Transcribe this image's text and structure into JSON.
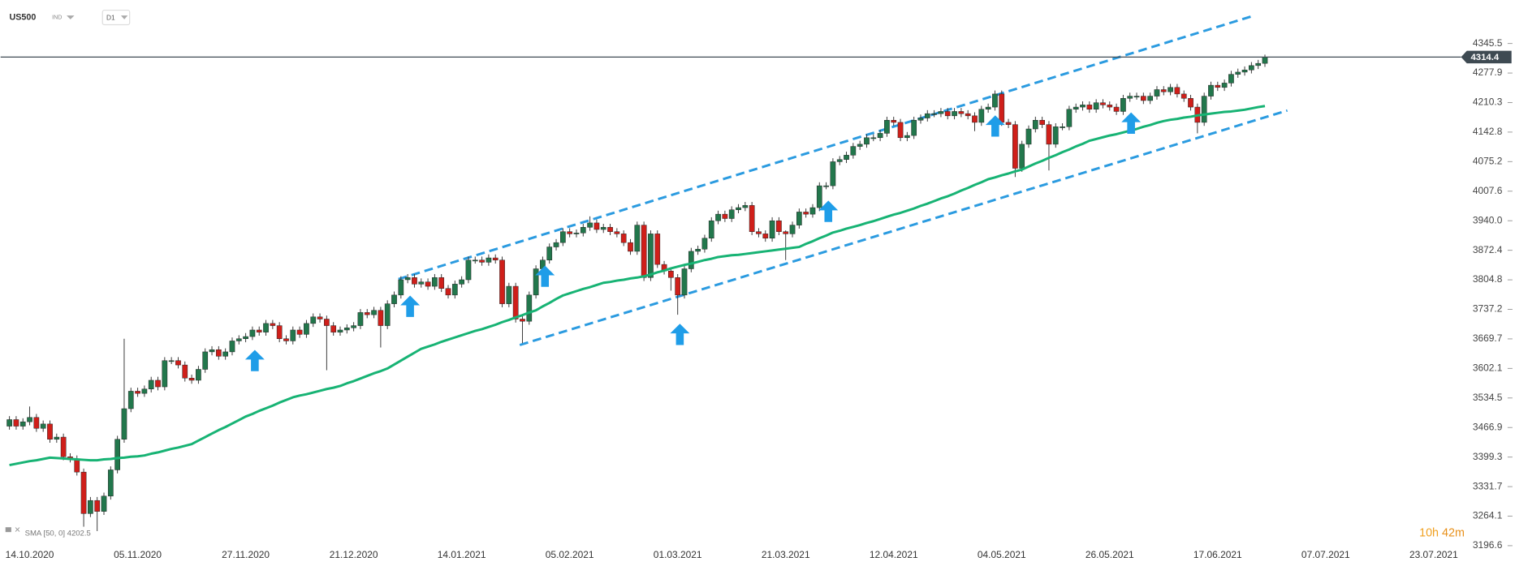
{
  "chart_data": {
    "type": "candlestick",
    "symbol": "US500",
    "market": "IND",
    "timeframe": "D1",
    "up_color": "#22774c",
    "down_color": "#cf1f1a",
    "categories": [
      null,
      null,
      null,
      "14.10.2020",
      null,
      null,
      null,
      null,
      null,
      null,
      null,
      null,
      null,
      null,
      null,
      null,
      null,
      null,
      null,
      "05.11.2020",
      null,
      null,
      null,
      null,
      null,
      null,
      null,
      null,
      null,
      null,
      null,
      null,
      null,
      null,
      null,
      "27.11.2020",
      null,
      null,
      null,
      null,
      null,
      null,
      null,
      null,
      null,
      null,
      null,
      null,
      null,
      null,
      null,
      "21.12.2020",
      null,
      null,
      null,
      null,
      null,
      null,
      null,
      null,
      null,
      null,
      null,
      null,
      null,
      null,
      null,
      "14.01.2021",
      null,
      null,
      null,
      null,
      null,
      null,
      null,
      null,
      null,
      null,
      null,
      null,
      null,
      null,
      null,
      "05.02.2021",
      null,
      null,
      null,
      null,
      null,
      null,
      null,
      null,
      null,
      null,
      null,
      null,
      null,
      null,
      null,
      "01.03.2021",
      null,
      null,
      null,
      null,
      null,
      null,
      null,
      null,
      null,
      null,
      null,
      null,
      null,
      null,
      null,
      "21.03.2021",
      null,
      null,
      null,
      null,
      null,
      null,
      null,
      null,
      null,
      null,
      null,
      null,
      null,
      null,
      null,
      "12.04.2021",
      null,
      null,
      null,
      null,
      null,
      null,
      null,
      null,
      null,
      null,
      null,
      null,
      null,
      null,
      null,
      "04.05.2021",
      null,
      null,
      null,
      null,
      null,
      null,
      null,
      null,
      null,
      null,
      null,
      null,
      null,
      null,
      null,
      "26.05.2021",
      null,
      null,
      null,
      null,
      null,
      null,
      null,
      null,
      null,
      null,
      null,
      null,
      null,
      null,
      null,
      "17.06.2021",
      null,
      null,
      null,
      null,
      null,
      null,
      null,
      null,
      null,
      null,
      null,
      null,
      null,
      null,
      null,
      "07.07.2021",
      null,
      null,
      null,
      null,
      null,
      null,
      null,
      null,
      null,
      null,
      null,
      null,
      null,
      null,
      null,
      "23.07.2021",
      null,
      null,
      null
    ],
    "open": [
      3470,
      3485,
      3470,
      3480,
      3490,
      3465,
      3475,
      3440,
      3445,
      3400,
      3395,
      3365,
      3270,
      3300,
      3275,
      3310,
      3370,
      3440,
      3510,
      3550,
      3545,
      3555,
      3575,
      3560,
      3620,
      3620,
      3610,
      3580,
      3575,
      3600,
      3640,
      3645,
      3630,
      3640,
      3665,
      3670,
      3675,
      3690,
      3685,
      3705,
      3700,
      3670,
      3665,
      3690,
      3680,
      3705,
      3720,
      3715,
      3700,
      3685,
      3690,
      3695,
      3700,
      3730,
      3725,
      3735,
      3700,
      3750,
      3770,
      3805,
      3810,
      3795,
      3800,
      3790,
      3810,
      3785,
      3770,
      3795,
      3805,
      3850,
      3850,
      3845,
      3855,
      3850,
      3750,
      3790,
      3715,
      3710,
      3770,
      3830,
      3850,
      3880,
      3890,
      3915,
      3910,
      3912,
      3925,
      3935,
      3920,
      3925,
      3915,
      3910,
      3890,
      3870,
      3930,
      3810,
      3910,
      3840,
      3825,
      3810,
      3770,
      3830,
      3870,
      3875,
      3900,
      3940,
      3955,
      3945,
      3965,
      3970,
      3975,
      3915,
      3910,
      3900,
      3940,
      3915,
      3910,
      3930,
      3960,
      3955,
      3970,
      4020,
      4020,
      4075,
      4080,
      4090,
      4110,
      4115,
      4130,
      4130,
      4140,
      4170,
      4165,
      4130,
      4135,
      4170,
      4175,
      4185,
      4185,
      4190,
      4180,
      4190,
      4185,
      4180,
      4165,
      4195,
      4200,
      4230,
      4165,
      4160,
      4060,
      4115,
      4150,
      4170,
      4160,
      4115,
      4155,
      4155,
      4195,
      4200,
      4205,
      4195,
      4210,
      4205,
      4200,
      4190,
      4220,
      4225,
      4225,
      4215,
      4225,
      4240,
      4235,
      4245,
      4230,
      4220,
      4200,
      4165,
      4225,
      4250,
      4245,
      4255,
      4275,
      4280,
      4285,
      4295,
      4300,
      null,
      null,
      null,
      null,
      null,
      null,
      null,
      null,
      null,
      null,
      null,
      null,
      null,
      null,
      null,
      null,
      null,
      null,
      null,
      null,
      null,
      null,
      null,
      null,
      null,
      null,
      null,
      null
    ],
    "high": [
      3493,
      3493,
      3488,
      3515,
      3498,
      3483,
      3483,
      3453,
      3453,
      3408,
      3403,
      3373,
      3308,
      3308,
      3318,
      3378,
      3448,
      3670,
      3558,
      3558,
      3563,
      3583,
      3583,
      3628,
      3628,
      3628,
      3618,
      3588,
      3608,
      3648,
      3653,
      3653,
      3648,
      3673,
      3678,
      3683,
      3698,
      3698,
      3713,
      3713,
      3708,
      3678,
      3698,
      3698,
      3713,
      3728,
      3728,
      3723,
      3708,
      3698,
      3703,
      3708,
      3738,
      3738,
      3743,
      3743,
      3758,
      3778,
      3813,
      3818,
      3818,
      3808,
      3808,
      3818,
      3818,
      3793,
      3803,
      3813,
      3858,
      3858,
      3858,
      3863,
      3863,
      3858,
      3798,
      3798,
      3723,
      3778,
      3838,
      3858,
      3888,
      3898,
      3923,
      3923,
      3920,
      3933,
      3950,
      3943,
      3933,
      3933,
      3923,
      3918,
      3898,
      3938,
      3938,
      3918,
      3918,
      3848,
      3833,
      3818,
      3838,
      3878,
      3883,
      3908,
      3948,
      3963,
      3963,
      3973,
      3978,
      3983,
      3983,
      3923,
      3918,
      3948,
      3948,
      3918,
      3938,
      3968,
      3968,
      3978,
      4028,
      4028,
      4083,
      4088,
      4098,
      4118,
      4123,
      4138,
      4138,
      4148,
      4178,
      4178,
      4173,
      4143,
      4178,
      4183,
      4193,
      4193,
      4198,
      4198,
      4198,
      4198,
      4193,
      4188,
      4203,
      4208,
      4238,
      4238,
      4173,
      4168,
      4123,
      4158,
      4178,
      4178,
      4168,
      4163,
      4163,
      4203,
      4208,
      4213,
      4213,
      4218,
      4218,
      4213,
      4208,
      4228,
      4233,
      4233,
      4233,
      4233,
      4248,
      4248,
      4253,
      4253,
      4238,
      4228,
      4208,
      4233,
      4258,
      4258,
      4263,
      4283,
      4288,
      4293,
      4303,
      4308,
      4320,
      null,
      null,
      null,
      null,
      null,
      null,
      null,
      null,
      null,
      null,
      null,
      null,
      null,
      null,
      null,
      null,
      null,
      null,
      null,
      null,
      null,
      null,
      null,
      null,
      null,
      null,
      null,
      null
    ],
    "low": [
      3462,
      3462,
      3462,
      3472,
      3457,
      3457,
      3432,
      3432,
      3392,
      3387,
      3357,
      3240,
      3262,
      3230,
      3267,
      3302,
      3362,
      3432,
      3502,
      3537,
      3537,
      3547,
      3552,
      3552,
      3612,
      3602,
      3572,
      3567,
      3567,
      3592,
      3632,
      3622,
      3622,
      3632,
      3657,
      3662,
      3667,
      3677,
      3677,
      3692,
      3662,
      3657,
      3657,
      3672,
      3672,
      3697,
      3707,
      3598,
      3677,
      3677,
      3682,
      3687,
      3692,
      3717,
      3717,
      3650,
      3692,
      3742,
      3762,
      3797,
      3787,
      3787,
      3782,
      3782,
      3777,
      3762,
      3762,
      3787,
      3797,
      3842,
      3837,
      3837,
      3842,
      3742,
      3742,
      3707,
      3660,
      3702,
      3762,
      3822,
      3842,
      3872,
      3882,
      3902,
      3902,
      3904,
      3917,
      3912,
      3912,
      3907,
      3902,
      3882,
      3862,
      3862,
      3802,
      3802,
      3832,
      3817,
      3780,
      3725,
      3762,
      3822,
      3862,
      3867,
      3892,
      3932,
      3937,
      3937,
      3957,
      3962,
      3907,
      3902,
      3892,
      3892,
      3907,
      3850,
      3902,
      3922,
      3947,
      3947,
      3962,
      4012,
      4012,
      4067,
      4072,
      4082,
      4102,
      4107,
      4122,
      4122,
      4132,
      4157,
      4122,
      4122,
      4127,
      4162,
      4167,
      4177,
      4177,
      4172,
      4172,
      4177,
      4172,
      4145,
      4157,
      4187,
      4192,
      4157,
      4152,
      4040,
      4052,
      4107,
      4142,
      4152,
      4055,
      4107,
      4147,
      4147,
      4187,
      4192,
      4187,
      4187,
      4197,
      4192,
      4182,
      4182,
      4212,
      4217,
      4207,
      4207,
      4217,
      4227,
      4227,
      4222,
      4212,
      4192,
      4140,
      4157,
      4217,
      4237,
      4237,
      4247,
      4267,
      4272,
      4277,
      4287,
      4292,
      null,
      null,
      null,
      null,
      null,
      null,
      null,
      null,
      null,
      null,
      null,
      null,
      null,
      null,
      null,
      null,
      null,
      null,
      null,
      null,
      null,
      null,
      null,
      null,
      null,
      null,
      null,
      null
    ],
    "close": [
      3485,
      3470,
      3480,
      3490,
      3465,
      3475,
      3440,
      3445,
      3400,
      3395,
      3365,
      3270,
      3300,
      3275,
      3310,
      3370,
      3440,
      3510,
      3550,
      3545,
      3555,
      3575,
      3560,
      3620,
      3620,
      3610,
      3580,
      3575,
      3600,
      3640,
      3645,
      3630,
      3640,
      3665,
      3670,
      3675,
      3690,
      3685,
      3705,
      3700,
      3670,
      3665,
      3690,
      3680,
      3705,
      3720,
      3715,
      3700,
      3685,
      3690,
      3695,
      3700,
      3730,
      3725,
      3735,
      3700,
      3750,
      3770,
      3805,
      3810,
      3795,
      3800,
      3790,
      3810,
      3785,
      3770,
      3795,
      3805,
      3850,
      3850,
      3845,
      3855,
      3850,
      3750,
      3790,
      3715,
      3710,
      3770,
      3830,
      3850,
      3880,
      3890,
      3915,
      3910,
      3912,
      3925,
      3935,
      3920,
      3925,
      3915,
      3910,
      3890,
      3870,
      3930,
      3810,
      3910,
      3840,
      3825,
      3810,
      3770,
      3830,
      3870,
      3875,
      3900,
      3940,
      3955,
      3945,
      3965,
      3970,
      3975,
      3915,
      3910,
      3900,
      3940,
      3915,
      3910,
      3930,
      3960,
      3955,
      3970,
      4020,
      4020,
      4075,
      4080,
      4090,
      4110,
      4115,
      4130,
      4130,
      4140,
      4170,
      4165,
      4130,
      4135,
      4170,
      4175,
      4185,
      4185,
      4190,
      4180,
      4190,
      4185,
      4180,
      4165,
      4195,
      4200,
      4230,
      4165,
      4160,
      4060,
      4115,
      4150,
      4170,
      4160,
      4115,
      4155,
      4155,
      4195,
      4200,
      4205,
      4195,
      4210,
      4205,
      4200,
      4190,
      4220,
      4225,
      4225,
      4215,
      4225,
      4240,
      4235,
      4245,
      4230,
      4220,
      4200,
      4165,
      4225,
      4250,
      4245,
      4255,
      4275,
      4280,
      4285,
      4295,
      4300,
      4314.4,
      null,
      null,
      null,
      null,
      null,
      null,
      null,
      null,
      null,
      null,
      null,
      null,
      null,
      null,
      null,
      null,
      null,
      null,
      null,
      null,
      null,
      null,
      null,
      null,
      null,
      null,
      null,
      null
    ],
    "sma": {
      "name": "SMA [50, 0]",
      "color": "#17b374",
      "values": [
        3381,
        3384,
        3387,
        3390,
        3392,
        3395,
        3398,
        3397,
        3396,
        3395,
        3394,
        3393,
        3392,
        3392,
        3394,
        3395,
        3397,
        3398,
        3400,
        3401,
        3403,
        3407,
        3410,
        3414,
        3418,
        3421,
        3425,
        3429,
        3437,
        3445,
        3453,
        3461,
        3468,
        3476,
        3484,
        3492,
        3498,
        3505,
        3511,
        3517,
        3524,
        3530,
        3536,
        3540,
        3543,
        3547,
        3551,
        3555,
        3558,
        3562,
        3568,
        3573,
        3579,
        3585,
        3591,
        3596,
        3602,
        3611,
        3620,
        3629,
        3638,
        3647,
        3652,
        3657,
        3663,
        3668,
        3673,
        3678,
        3683,
        3688,
        3692,
        3697,
        3702,
        3708,
        3713,
        3719,
        3724,
        3730,
        3735,
        3744,
        3752,
        3761,
        3769,
        3774,
        3779,
        3784,
        3788,
        3793,
        3798,
        3800,
        3803,
        3805,
        3808,
        3810,
        3813,
        3817,
        3822,
        3826,
        3831,
        3835,
        3839,
        3842,
        3846,
        3850,
        3853,
        3857,
        3859,
        3861,
        3862,
        3864,
        3866,
        3868,
        3870,
        3872,
        3874,
        3876,
        3878,
        3880,
        3887,
        3893,
        3900,
        3906,
        3913,
        3917,
        3922,
        3926,
        3930,
        3935,
        3939,
        3944,
        3949,
        3954,
        3958,
        3963,
        3968,
        3974,
        3979,
        3985,
        3991,
        3996,
        4002,
        4009,
        4015,
        4022,
        4028,
        4035,
        4039,
        4044,
        4048,
        4053,
        4057,
        4064,
        4071,
        4077,
        4084,
        4090,
        4097,
        4103,
        4110,
        4116,
        4123,
        4127,
        4131,
        4135,
        4138,
        4142,
        4146,
        4150,
        4155,
        4159,
        4164,
        4168,
        4171,
        4173,
        4176,
        4178,
        4181,
        4183,
        4185,
        4187,
        4189,
        4190,
        4192,
        4194,
        4197,
        4200,
        4202.5,
        null,
        null,
        null,
        null,
        null,
        null,
        null,
        null,
        null,
        null,
        null,
        null,
        null,
        null,
        null,
        null,
        null,
        null,
        null,
        null,
        null,
        null,
        null,
        null,
        null,
        null,
        null,
        null
      ]
    },
    "ylim": [
      3190,
      4445
    ],
    "yticks": [
      4345.5,
      4277.9,
      4210.3,
      4142.8,
      4075.2,
      4007.6,
      {
        "value": 3940,
        "label": "3940.0"
      },
      3872.4,
      3804.8,
      3737.2,
      3669.7,
      3602.1,
      3534.5,
      3466.9,
      3399.3,
      3331.7,
      3264.1,
      3196.6
    ],
    "countdown": {
      "hours": "10h",
      "minutes": "42m"
    }
  }
}
